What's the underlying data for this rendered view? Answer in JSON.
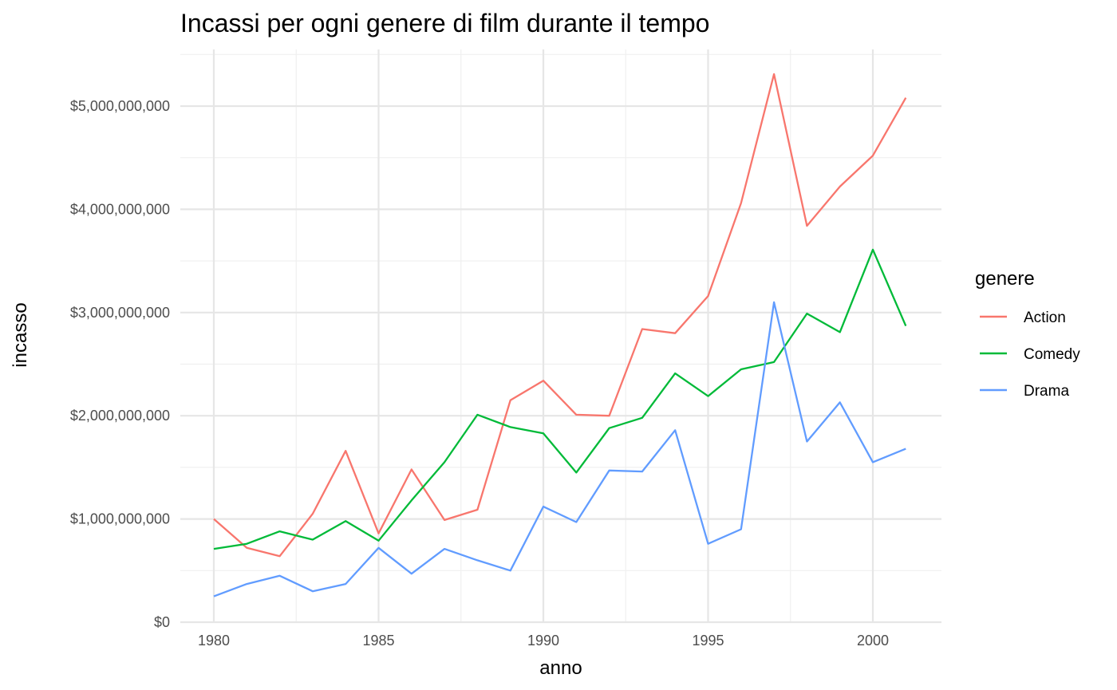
{
  "chart_data": {
    "type": "line",
    "title": "Incassi per ogni genere di film durante il tempo",
    "xlabel": "anno",
    "ylabel": "incasso",
    "x": [
      1980,
      1981,
      1982,
      1983,
      1984,
      1985,
      1986,
      1987,
      1988,
      1989,
      1990,
      1991,
      1992,
      1993,
      1994,
      1995,
      1996,
      1997,
      1998,
      1999,
      2000,
      2001
    ],
    "xlim": [
      1979,
      2002
    ],
    "ylim": [
      0,
      5500000000
    ],
    "x_ticks": [
      {
        "value": 1980,
        "label": "1980"
      },
      {
        "value": 1985,
        "label": "1985"
      },
      {
        "value": 1990,
        "label": "1990"
      },
      {
        "value": 1995,
        "label": "1995"
      },
      {
        "value": 2000,
        "label": "2000"
      }
    ],
    "y_ticks": [
      {
        "value": 0,
        "label": "$0"
      },
      {
        "value": 1000000000,
        "label": "$1,000,000,000"
      },
      {
        "value": 2000000000,
        "label": "$2,000,000,000"
      },
      {
        "value": 3000000000,
        "label": "$3,000,000,000"
      },
      {
        "value": 4000000000,
        "label": "$4,000,000,000"
      },
      {
        "value": 5000000000,
        "label": "$5,000,000,000"
      }
    ],
    "grid": true,
    "legend": {
      "title": "genere",
      "position": "right"
    },
    "series": [
      {
        "name": "Action",
        "color": "#F8766D",
        "values": [
          1000000000,
          720000000,
          640000000,
          1050000000,
          1660000000,
          860000000,
          1480000000,
          990000000,
          1090000000,
          2150000000,
          2340000000,
          2010000000,
          2000000000,
          2840000000,
          2800000000,
          3160000000,
          4060000000,
          5310000000,
          3840000000,
          4220000000,
          4520000000,
          5080000000
        ]
      },
      {
        "name": "Comedy",
        "color": "#00BA38",
        "values": [
          710000000,
          760000000,
          880000000,
          800000000,
          980000000,
          790000000,
          1180000000,
          1550000000,
          2010000000,
          1890000000,
          1830000000,
          1450000000,
          1880000000,
          1980000000,
          2410000000,
          2190000000,
          2450000000,
          2520000000,
          2990000000,
          2810000000,
          3610000000,
          2870000000
        ]
      },
      {
        "name": "Drama",
        "color": "#619CFF",
        "values": [
          250000000,
          370000000,
          450000000,
          300000000,
          370000000,
          720000000,
          470000000,
          710000000,
          600000000,
          500000000,
          1120000000,
          970000000,
          1470000000,
          1460000000,
          1860000000,
          760000000,
          900000000,
          3100000000,
          1750000000,
          2130000000,
          1550000000,
          1680000000
        ]
      }
    ]
  }
}
